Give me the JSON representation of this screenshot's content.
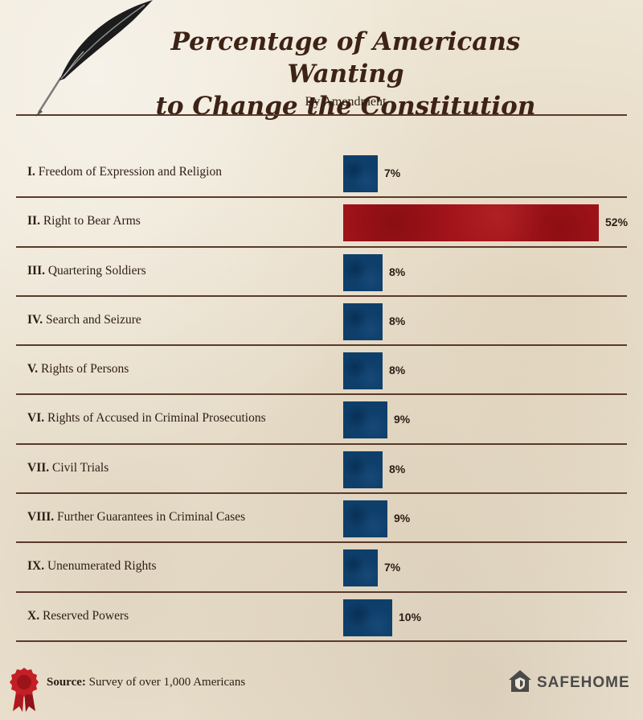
{
  "title_line1": "Percentage of Americans Wanting",
  "title_line2": "to Change the Constitution",
  "subtitle": "By Amendment",
  "colors": {
    "bar": "#0e3f6b",
    "highlight": "#a3141a",
    "ink": "#3d2216"
  },
  "chart_data": {
    "type": "bar",
    "orientation": "horizontal",
    "title": "Percentage of Americans Wanting to Change the Constitution",
    "subtitle": "By Amendment",
    "xlim": [
      0,
      52
    ],
    "grid": false,
    "legend": "none",
    "categories": [
      {
        "numeral": "I.",
        "name": "Freedom of Expression and Religion"
      },
      {
        "numeral": "II.",
        "name": "Right to Bear Arms"
      },
      {
        "numeral": "III.",
        "name": "Quartering Soldiers"
      },
      {
        "numeral": "IV.",
        "name": "Search and Seizure"
      },
      {
        "numeral": "V.",
        "name": "Rights of Persons"
      },
      {
        "numeral": "VI.",
        "name": "Rights of Accused in Criminal Prosecutions"
      },
      {
        "numeral": "VII.",
        "name": "Civil Trials"
      },
      {
        "numeral": "VIII.",
        "name": "Further Guarantees in Criminal Cases"
      },
      {
        "numeral": "IX.",
        "name": "Unenumerated Rights"
      },
      {
        "numeral": "X.",
        "name": "Reserved Powers"
      }
    ],
    "values": [
      7,
      52,
      8,
      8,
      8,
      9,
      8,
      9,
      7,
      10
    ],
    "value_suffix": "%",
    "highlight_index": 1
  },
  "footer": {
    "source_label": "Source:",
    "source_text": " Survey of over 1,000 Americans",
    "brand": "SAFEHOME",
    "seal_icon": "wax-seal-ribbon-icon",
    "quill_icon": "quill-pen-icon",
    "brand_icon": "house-shield-icon"
  }
}
